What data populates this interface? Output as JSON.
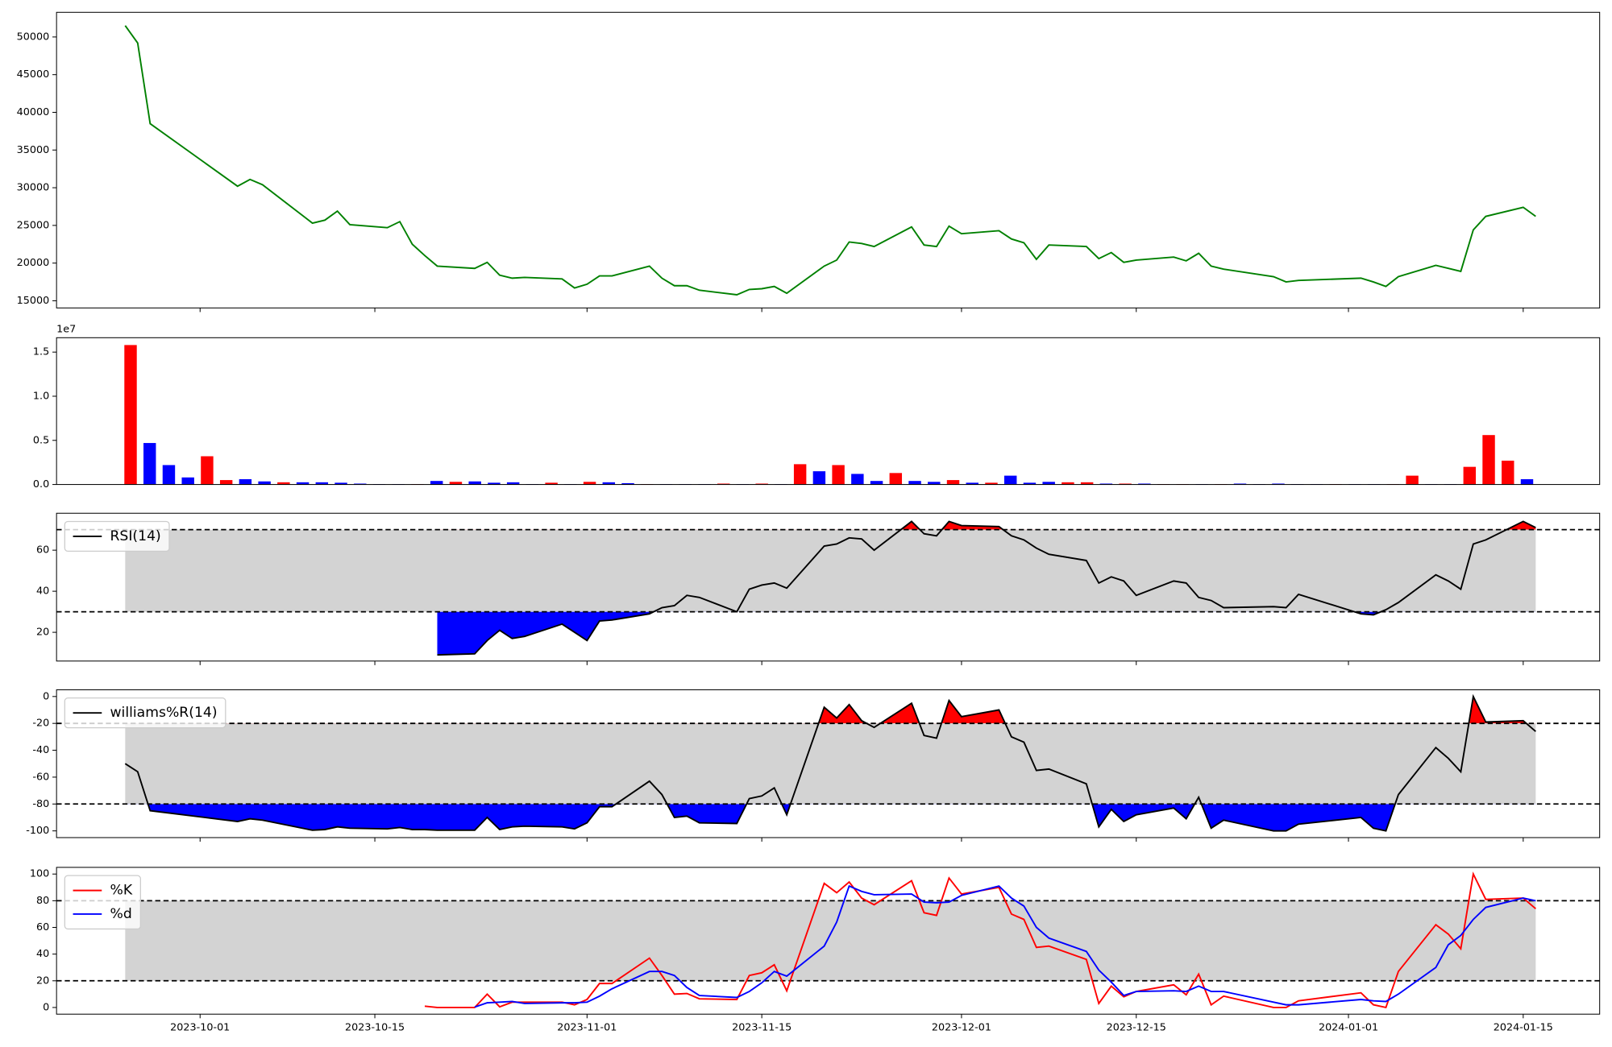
{
  "chart_data": [
    {
      "type": "line",
      "x": [
        "2023-09-25",
        "2023-09-26",
        "2023-09-27",
        "2023-10-04",
        "2023-10-05",
        "2023-10-06",
        "2023-10-10",
        "2023-10-11",
        "2023-10-12",
        "2023-10-13",
        "2023-10-16",
        "2023-10-17",
        "2023-10-18",
        "2023-10-19",
        "2023-10-20",
        "2023-10-23",
        "2023-10-24",
        "2023-10-25",
        "2023-10-26",
        "2023-10-27",
        "2023-10-30",
        "2023-10-31",
        "2023-11-01",
        "2023-11-02",
        "2023-11-03",
        "2023-11-06",
        "2023-11-07",
        "2023-11-08",
        "2023-11-09",
        "2023-11-10",
        "2023-11-13",
        "2023-11-14",
        "2023-11-15",
        "2023-11-16",
        "2023-11-17",
        "2023-11-20",
        "2023-11-21",
        "2023-11-22",
        "2023-11-23",
        "2023-11-24",
        "2023-11-27",
        "2023-11-28",
        "2023-11-29",
        "2023-11-30",
        "2023-12-01",
        "2023-12-04",
        "2023-12-05",
        "2023-12-06",
        "2023-12-07",
        "2023-12-08",
        "2023-12-11",
        "2023-12-12",
        "2023-12-13",
        "2023-12-14",
        "2023-12-15",
        "2023-12-18",
        "2023-12-19",
        "2023-12-20",
        "2023-12-21",
        "2023-12-22",
        "2023-12-26",
        "2023-12-27",
        "2023-12-28",
        "2024-01-02",
        "2024-01-03",
        "2024-01-04",
        "2024-01-05",
        "2024-01-08",
        "2024-01-09",
        "2024-01-10",
        "2024-01-11",
        "2024-01-12",
        "2024-01-15",
        "2024-01-16"
      ],
      "values": [
        51500,
        49200,
        38500,
        30200,
        31100,
        30400,
        25300,
        25700,
        26900,
        25100,
        24700,
        25500,
        22500,
        21000,
        19600,
        19300,
        20100,
        18400,
        18000,
        18100,
        17900,
        16700,
        17200,
        18300,
        18300,
        19600,
        18000,
        17000,
        17000,
        16400,
        15800,
        16500,
        16600,
        16900,
        16000,
        19600,
        20400,
        22800,
        22600,
        22200,
        24800,
        22400,
        22200,
        24900,
        23900,
        24300,
        23200,
        22700,
        20500,
        22400,
        22200,
        20600,
        21400,
        20100,
        20400,
        20800,
        20300,
        21300,
        19600,
        19200,
        18200,
        17500,
        17700,
        18000,
        17500,
        16900,
        18200,
        19700,
        19300,
        18900,
        24400,
        26200,
        27400,
        26200
      ],
      "color": "green",
      "xlim": [
        "2023-09-19T12:00:00Z",
        "2024-01-21T03:00:00Z"
      ],
      "ylim": [
        14050,
        53270
      ],
      "yticks": [
        15000,
        20000,
        25000,
        30000,
        35000,
        40000,
        45000,
        50000
      ]
    },
    {
      "type": "bar",
      "values": [
        15800000,
        4700000,
        2200000,
        800000,
        3200000,
        500000,
        600000,
        350000,
        250000,
        250000,
        250000,
        200000,
        100000,
        50000,
        50000,
        50000,
        400000,
        300000,
        350000,
        200000,
        250000,
        50000,
        200000,
        50000,
        300000,
        250000,
        150000,
        50000,
        50000,
        50000,
        50000,
        100000,
        50000,
        100000,
        50000,
        2300000,
        1500000,
        2200000,
        1200000,
        400000,
        1300000,
        400000,
        300000,
        500000,
        200000,
        200000,
        1000000,
        200000,
        300000,
        250000,
        250000,
        100000,
        100000,
        100000,
        50000,
        50000,
        50000,
        50000,
        100000,
        50000,
        100000,
        50000,
        50000,
        50000,
        50000,
        50000,
        50000,
        1000000,
        50000,
        50000,
        2000000,
        5600000,
        2700000,
        600000
      ],
      "colors": [
        "red",
        "blue",
        "blue",
        "blue",
        "red",
        "red",
        "blue",
        "blue",
        "red",
        "blue",
        "blue",
        "blue",
        "blue",
        "blue",
        "blue",
        "red",
        "blue",
        "red",
        "blue",
        "blue",
        "blue",
        "blue",
        "red",
        "blue",
        "red",
        "blue",
        "blue",
        "red",
        "blue",
        "blue",
        "blue",
        "red",
        "blue",
        "red",
        "blue",
        "red",
        "blue",
        "red",
        "blue",
        "blue",
        "red",
        "blue",
        "blue",
        "red",
        "blue",
        "red",
        "blue",
        "blue",
        "blue",
        "red",
        "red",
        "blue",
        "red",
        "blue",
        "red",
        "red",
        "blue",
        "red",
        "blue",
        "blue",
        "blue",
        "blue",
        "blue",
        "red",
        "blue",
        "blue",
        "red",
        "red",
        "blue",
        "blue",
        "red",
        "red",
        "red",
        "blue"
      ],
      "offset_label": "1e7",
      "ylim": [
        0,
        16630000
      ],
      "yticks": [
        {
          "value": 0,
          "label": "0.0"
        },
        {
          "value": 5000000,
          "label": "0.5"
        },
        {
          "value": 10000000,
          "label": "1.0"
        },
        {
          "value": 15000000,
          "label": "1.5"
        }
      ]
    },
    {
      "type": "line",
      "x": [
        "2023-09-25",
        "2023-09-26",
        "2023-09-27",
        "2023-10-04",
        "2023-10-05",
        "2023-10-06",
        "2023-10-10",
        "2023-10-11",
        "2023-10-12",
        "2023-10-13",
        "2023-10-16",
        "2023-10-17",
        "2023-10-18",
        "2023-10-19",
        "2023-10-20",
        "2023-10-23",
        "2023-10-24",
        "2023-10-25",
        "2023-10-26",
        "2023-10-27",
        "2023-10-30",
        "2023-10-31",
        "2023-11-01",
        "2023-11-02",
        "2023-11-03",
        "2023-11-06",
        "2023-11-07",
        "2023-11-08",
        "2023-11-09",
        "2023-11-10",
        "2023-11-13",
        "2023-11-14",
        "2023-11-15",
        "2023-11-16",
        "2023-11-17",
        "2023-11-20",
        "2023-11-21",
        "2023-11-22",
        "2023-11-23",
        "2023-11-24",
        "2023-11-27",
        "2023-11-28",
        "2023-11-29",
        "2023-11-30",
        "2023-12-01",
        "2023-12-04",
        "2023-12-05",
        "2023-12-06",
        "2023-12-07",
        "2023-12-08",
        "2023-12-11",
        "2023-12-12",
        "2023-12-13",
        "2023-12-14",
        "2023-12-15",
        "2023-12-18",
        "2023-12-19",
        "2023-12-20",
        "2023-12-21",
        "2023-12-22",
        "2023-12-26",
        "2023-12-27",
        "2023-12-28",
        "2024-01-02",
        "2024-01-03",
        "2024-01-04",
        "2024-01-05",
        "2024-01-08",
        "2024-01-09",
        "2024-01-10",
        "2024-01-11",
        "2024-01-12",
        "2024-01-15",
        "2024-01-16"
      ],
      "series": [
        {
          "name": "RSI(14)",
          "color": "black",
          "values": [
            null,
            null,
            null,
            null,
            null,
            null,
            null,
            null,
            null,
            null,
            null,
            null,
            null,
            null,
            9,
            9.5,
            16,
            21,
            17,
            18,
            24,
            20,
            16,
            25.5,
            26,
            29,
            32,
            33,
            38,
            37,
            30,
            41,
            43,
            44,
            41.5,
            62,
            63,
            66,
            65.5,
            60,
            74,
            68,
            67,
            74,
            72,
            71.5,
            67,
            65,
            61,
            58,
            55,
            44,
            47,
            45,
            38,
            45,
            44,
            37,
            35.5,
            32,
            32.5,
            32,
            38.5,
            29,
            28.5,
            31,
            34.5,
            48,
            45,
            41,
            63,
            65,
            74,
            71
          ]
        }
      ],
      "thresholds": [
        30,
        70
      ],
      "fill_colors": [
        "blue",
        "red"
      ],
      "band_color": "lightgray",
      "legend": "upper left",
      "xlim": [
        "2023-09-19T12:00:00Z",
        "2024-01-21T03:00:00Z"
      ],
      "ylim": [
        6,
        78
      ],
      "yticks": [
        20,
        40,
        60
      ]
    },
    {
      "type": "line",
      "x": [
        "2023-09-25",
        "2023-09-26",
        "2023-09-27",
        "2023-10-04",
        "2023-10-05",
        "2023-10-06",
        "2023-10-10",
        "2023-10-11",
        "2023-10-12",
        "2023-10-13",
        "2023-10-16",
        "2023-10-17",
        "2023-10-18",
        "2023-10-19",
        "2023-10-20",
        "2023-10-23",
        "2023-10-24",
        "2023-10-25",
        "2023-10-26",
        "2023-10-27",
        "2023-10-30",
        "2023-10-31",
        "2023-11-01",
        "2023-11-02",
        "2023-11-03",
        "2023-11-06",
        "2023-11-07",
        "2023-11-08",
        "2023-11-09",
        "2023-11-10",
        "2023-11-13",
        "2023-11-14",
        "2023-11-15",
        "2023-11-16",
        "2023-11-17",
        "2023-11-20",
        "2023-11-21",
        "2023-11-22",
        "2023-11-23",
        "2023-11-24",
        "2023-11-27",
        "2023-11-28",
        "2023-11-29",
        "2023-11-30",
        "2023-12-01",
        "2023-12-04",
        "2023-12-05",
        "2023-12-06",
        "2023-12-07",
        "2023-12-08",
        "2023-12-11",
        "2023-12-12",
        "2023-12-13",
        "2023-12-14",
        "2023-12-15",
        "2023-12-18",
        "2023-12-19",
        "2023-12-20",
        "2023-12-21",
        "2023-12-22",
        "2023-12-26",
        "2023-12-27",
        "2023-12-28",
        "2024-01-02",
        "2024-01-03",
        "2024-01-04",
        "2024-01-05",
        "2024-01-08",
        "2024-01-09",
        "2024-01-10",
        "2024-01-11",
        "2024-01-12",
        "2024-01-15",
        "2024-01-16"
      ],
      "series": [
        {
          "name": "williams%R(14)",
          "color": "black",
          "values": [
            -50,
            -56,
            -85,
            -93,
            -91,
            -92,
            -99.5,
            -99,
            -97,
            -98,
            -98.5,
            -97.5,
            -99,
            -99,
            -99.5,
            -99.5,
            -90,
            -99,
            -97,
            -96.5,
            -97,
            -98.5,
            -94,
            -82,
            -82,
            -63,
            -73,
            -90,
            -89,
            -94,
            -94.5,
            -76,
            -74,
            -68,
            -88,
            -8,
            -16,
            -6,
            -18,
            -23,
            -5,
            -29,
            -31,
            -3,
            -15,
            -10,
            -30,
            -34,
            -55,
            -54,
            -65,
            -97,
            -84,
            -93,
            -88,
            -83,
            -91,
            -75,
            -98,
            -92,
            -100,
            -100,
            -95,
            -90,
            -98,
            -100,
            -73,
            -38,
            -46,
            -56,
            0,
            -19,
            -18,
            -26
          ]
        }
      ],
      "thresholds": [
        -80,
        -20
      ],
      "fill_colors": [
        "blue",
        "red"
      ],
      "band_color": "lightgray",
      "legend": "upper left",
      "xlim": [
        "2023-09-19T12:00:00Z",
        "2024-01-21T03:00:00Z"
      ],
      "ylim": [
        -105,
        5
      ],
      "yticks": [
        -100,
        -80,
        -60,
        -40,
        -20,
        0
      ]
    },
    {
      "type": "line",
      "x": [
        "2023-09-25",
        "2023-09-26",
        "2023-09-27",
        "2023-10-04",
        "2023-10-05",
        "2023-10-06",
        "2023-10-10",
        "2023-10-11",
        "2023-10-12",
        "2023-10-13",
        "2023-10-16",
        "2023-10-17",
        "2023-10-18",
        "2023-10-19",
        "2023-10-20",
        "2023-10-23",
        "2023-10-24",
        "2023-10-25",
        "2023-10-26",
        "2023-10-27",
        "2023-10-30",
        "2023-10-31",
        "2023-11-01",
        "2023-11-02",
        "2023-11-03",
        "2023-11-06",
        "2023-11-07",
        "2023-11-08",
        "2023-11-09",
        "2023-11-10",
        "2023-11-13",
        "2023-11-14",
        "2023-11-15",
        "2023-11-16",
        "2023-11-17",
        "2023-11-20",
        "2023-11-21",
        "2023-11-22",
        "2023-11-23",
        "2023-11-24",
        "2023-11-27",
        "2023-11-28",
        "2023-11-29",
        "2023-11-30",
        "2023-12-01",
        "2023-12-04",
        "2023-12-05",
        "2023-12-06",
        "2023-12-07",
        "2023-12-08",
        "2023-12-11",
        "2023-12-12",
        "2023-12-13",
        "2023-12-14",
        "2023-12-15",
        "2023-12-18",
        "2023-12-19",
        "2023-12-20",
        "2023-12-21",
        "2023-12-22",
        "2023-12-26",
        "2023-12-27",
        "2023-12-28",
        "2024-01-02",
        "2024-01-03",
        "2024-01-04",
        "2024-01-05",
        "2024-01-08",
        "2024-01-09",
        "2024-01-10",
        "2024-01-11",
        "2024-01-12",
        "2024-01-15",
        "2024-01-16"
      ],
      "series": [
        {
          "name": "%K",
          "color": "red",
          "values": [
            null,
            null,
            null,
            null,
            null,
            null,
            null,
            null,
            null,
            null,
            null,
            null,
            null,
            1,
            0,
            0,
            10,
            0.5,
            4,
            4,
            4,
            2,
            6,
            18,
            18,
            37,
            24,
            10,
            10.5,
            6.5,
            6,
            24,
            26,
            32,
            12.5,
            93,
            86,
            94,
            82,
            77,
            95,
            71,
            69,
            97,
            85,
            90,
            70,
            66,
            45,
            46,
            36,
            3,
            16,
            8,
            12,
            17,
            9.5,
            25,
            2,
            8.5,
            0,
            0,
            5,
            11,
            2,
            0,
            27,
            62,
            55,
            44,
            100,
            81,
            82,
            74
          ]
        },
        {
          "name": "%d",
          "color": "blue",
          "values": [
            null,
            null,
            null,
            null,
            null,
            null,
            null,
            null,
            null,
            null,
            null,
            null,
            null,
            null,
            null,
            0.3,
            3.5,
            4,
            4.5,
            3,
            3.5,
            3.5,
            4,
            8.5,
            14,
            27,
            27,
            24,
            15,
            9,
            7.5,
            12,
            18.5,
            27,
            23.5,
            46,
            64,
            91,
            87,
            84.5,
            85,
            79,
            78.5,
            79,
            84,
            91,
            82,
            76,
            60,
            52,
            42,
            28,
            19,
            9,
            12,
            12.5,
            12,
            16,
            12,
            12,
            4,
            2,
            2,
            6,
            5,
            4.5,
            10,
            30,
            47,
            54,
            66,
            75,
            82,
            80
          ]
        }
      ],
      "thresholds": [
        20,
        80
      ],
      "band_color": "lightgray",
      "legend": "upper left",
      "xlim": [
        "2023-09-19T12:00:00Z",
        "2024-01-21T03:00:00Z"
      ],
      "ylim": [
        -5,
        105
      ],
      "yticks": [
        0,
        20,
        40,
        60,
        80,
        100
      ],
      "xticks": [
        "2023-10-01",
        "2023-10-15",
        "2023-11-01",
        "2023-11-15",
        "2023-12-01",
        "2023-12-15",
        "2024-01-01",
        "2024-01-15"
      ]
    }
  ]
}
